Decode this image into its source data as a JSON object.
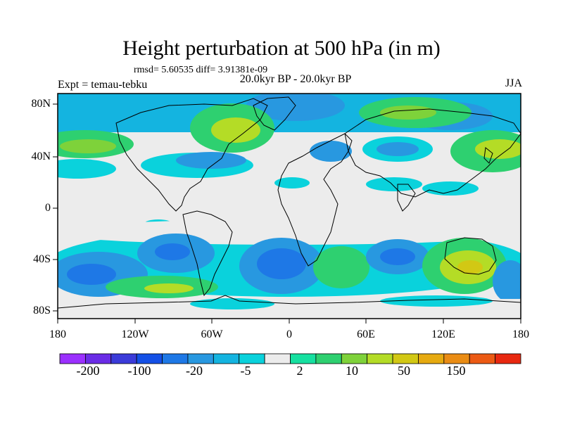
{
  "title": "Height perturbation at 500 hPa (in m)",
  "stats": "rmsd= 5.60535 diff= 3.91381e-09",
  "period": "20.0kyr BP - 20.0kyr BP",
  "experiment": "Expt = temau-tebku",
  "season": "JJA",
  "lat_ticks": [
    "80N",
    "40N",
    "0",
    "40S",
    "80S"
  ],
  "lon_ticks": [
    "180",
    "120W",
    "60W",
    "0",
    "60E",
    "120E",
    "180"
  ],
  "colorbar": {
    "colors": [
      "#9b30ff",
      "#6a2ce6",
      "#3b3bd9",
      "#1450e6",
      "#1e78e6",
      "#2898e0",
      "#14b4e0",
      "#0ad2dc",
      "#ececec",
      "#16e0a0",
      "#2ed070",
      "#7ed23a",
      "#b4dc26",
      "#d2c814",
      "#e6aa10",
      "#ea8c14",
      "#ec5a14",
      "#e82810"
    ],
    "labels": [
      "-200",
      "-100",
      "-20",
      "-5",
      "2",
      "10",
      "50",
      "150"
    ]
  }
}
